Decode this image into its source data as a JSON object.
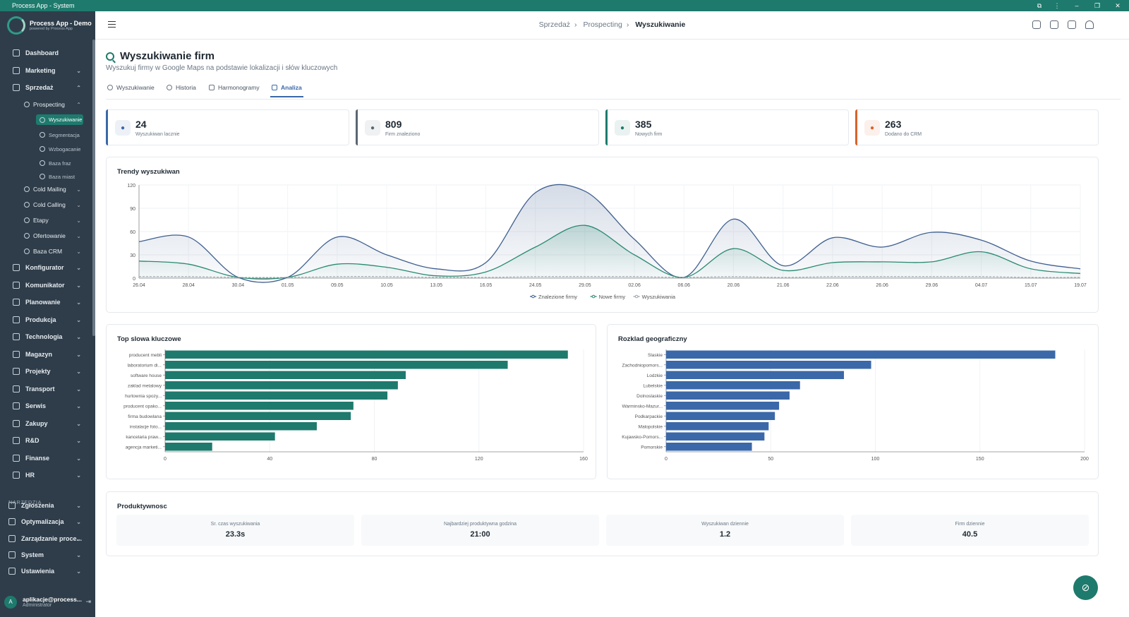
{
  "window": {
    "title": "Process App - System"
  },
  "brand": {
    "name": "Process App - Demo",
    "tagline": "powered by Process App"
  },
  "sidebar": {
    "items": [
      {
        "label": "Dashboard",
        "icon": "dashboard-icon",
        "expanded": null
      },
      {
        "label": "Marketing",
        "icon": "megaphone-icon",
        "expanded": false
      },
      {
        "label": "Sprzedaż",
        "icon": "trend-icon",
        "expanded": true
      },
      {
        "label": "Konfigurator",
        "icon": "sliders-icon",
        "expanded": false
      },
      {
        "label": "Komunikator",
        "icon": "chat-icon",
        "expanded": false
      },
      {
        "label": "Planowanie",
        "icon": "calendar-icon",
        "expanded": false
      },
      {
        "label": "Produkcja",
        "icon": "factory-icon",
        "expanded": false
      },
      {
        "label": "Technologia",
        "icon": "gear-icon",
        "expanded": false
      },
      {
        "label": "Magazyn",
        "icon": "warehouse-icon",
        "expanded": false
      },
      {
        "label": "Projekty",
        "icon": "folder-icon",
        "expanded": false
      },
      {
        "label": "Transport",
        "icon": "truck-icon",
        "expanded": false
      },
      {
        "label": "Serwis",
        "icon": "wrench-icon",
        "expanded": false
      },
      {
        "label": "Zakupy",
        "icon": "box-icon",
        "expanded": false
      },
      {
        "label": "R&D",
        "icon": "bulb-icon",
        "expanded": false
      },
      {
        "label": "Finanse",
        "icon": "wallet-icon",
        "expanded": false
      },
      {
        "label": "HR",
        "icon": "people-icon",
        "expanded": false
      }
    ],
    "sales_children": [
      {
        "label": "Prospecting",
        "expanded": true
      },
      {
        "label": "Cold Mailing",
        "expanded": false
      },
      {
        "label": "Cold Calling",
        "expanded": false
      },
      {
        "label": "Etapy",
        "expanded": false
      },
      {
        "label": "Ofertowanie",
        "expanded": false
      },
      {
        "label": "Baza CRM",
        "expanded": false
      }
    ],
    "prospecting_children": [
      {
        "label": "Wyszukiwanie",
        "active": true
      },
      {
        "label": "Segmentacja",
        "active": false
      },
      {
        "label": "Wzbogacanie",
        "active": false
      },
      {
        "label": "Baza fraz",
        "active": false
      },
      {
        "label": "Baza miast",
        "active": false
      }
    ],
    "tools_section": "NARZĘDZIA",
    "tools": [
      {
        "label": "Zgłoszenia",
        "icon": "ticket-icon"
      },
      {
        "label": "Optymalizacja",
        "icon": "bolt-icon"
      },
      {
        "label": "Zarządzanie proce...",
        "icon": "flow-icon"
      },
      {
        "label": "System",
        "icon": "cog-icon"
      },
      {
        "label": "Ustawienia",
        "icon": "settings-icon"
      }
    ],
    "user": {
      "initial": "A",
      "email": "aplikacje@process...",
      "role": "Administrator"
    }
  },
  "breadcrumb": [
    "Sprzedaż",
    "Prospecting",
    "Wyszukiwanie"
  ],
  "page": {
    "title": "Wyszukiwanie firm",
    "subtitle": "Wyszukuj firmy w Google Maps na podstawie lokalizacji i słów kluczowych",
    "tabs": [
      {
        "label": "Wyszukiwanie",
        "active": false
      },
      {
        "label": "Historia",
        "active": false
      },
      {
        "label": "Harmonogramy",
        "active": false
      },
      {
        "label": "Analiza",
        "active": true
      }
    ]
  },
  "stats": [
    {
      "value": "24",
      "label": "Wyszukiwan lacznie",
      "color": "#3b68a8",
      "icon": "search-icon"
    },
    {
      "value": "809",
      "label": "Firm znaleziono",
      "color": "#5a6672",
      "icon": "building-icon"
    },
    {
      "value": "385",
      "label": "Nowych firm",
      "color": "#1e7a6d",
      "icon": "trending-up-icon"
    },
    {
      "value": "263",
      "label": "Dodano do CRM",
      "color": "#d9622b",
      "icon": "check-circle-icon"
    }
  ],
  "trend_card": {
    "title": "Trendy wyszukiwan"
  },
  "keywords_card": {
    "title": "Top slowa kluczowe"
  },
  "geo_card": {
    "title": "Rozklad geograficzny"
  },
  "productivity": {
    "title": "Produktywnosc",
    "items": [
      {
        "label": "Sr. czas wyszukiwania",
        "value": "23.3s"
      },
      {
        "label": "Najbardziej produktywna godzina",
        "value": "21:00"
      },
      {
        "label": "Wyszukiwan dziennie",
        "value": "1.2"
      },
      {
        "label": "Firm dziennie",
        "value": "40.5"
      }
    ]
  },
  "chart_data": [
    {
      "type": "area",
      "title": "Trendy wyszukiwan",
      "x": [
        "26.04",
        "28.04",
        "30.04",
        "01.05",
        "09.05",
        "10.05",
        "13.05",
        "16.05",
        "24.05",
        "29.05",
        "02.06",
        "06.06",
        "20.06",
        "21.06",
        "22.06",
        "26.06",
        "29.06",
        "04.07",
        "15.07",
        "19.07"
      ],
      "ylim": [
        0,
        120
      ],
      "yticks": [
        0,
        30,
        60,
        90,
        120
      ],
      "series": [
        {
          "name": "Znalezione firmy",
          "color": "#3f5f8f",
          "values": [
            47,
            53,
            1,
            1,
            53,
            30,
            12,
            20,
            110,
            112,
            50,
            1,
            76,
            16,
            52,
            40,
            59,
            49,
            22,
            12
          ]
        },
        {
          "name": "Nowe firmy",
          "color": "#2a8a72",
          "values": [
            22,
            18,
            1,
            1,
            18,
            14,
            3,
            8,
            40,
            68,
            30,
            1,
            38,
            10,
            20,
            21,
            21,
            34,
            12,
            6
          ]
        },
        {
          "name": "Wyszukiwania",
          "color": "#9aa3ad",
          "values": [
            2,
            2,
            1,
            1,
            2,
            2,
            1,
            1,
            2,
            2,
            2,
            1,
            2,
            1,
            2,
            2,
            2,
            2,
            1,
            1
          ]
        }
      ]
    },
    {
      "type": "bar",
      "title": "Top slowa kluczowe",
      "orientation": "horizontal",
      "color": "#1e7a6d",
      "categories": [
        "producent mebli",
        "laboratorium di...",
        "software house",
        "zaklad metalowy",
        "hurtownia spozy...",
        "producent opako...",
        "firma budowlana",
        "instalacje foto...",
        "kancelaria praw...",
        "agencja marketi..."
      ],
      "values": [
        154,
        131,
        92,
        89,
        85,
        72,
        71,
        58,
        42,
        18
      ],
      "xlim": [
        0,
        160
      ],
      "xticks": [
        0,
        40,
        80,
        120,
        160
      ]
    },
    {
      "type": "bar",
      "title": "Rozklad geograficzny",
      "orientation": "horizontal",
      "color": "#3b68a8",
      "categories": [
        "Slaskie",
        "Zachodniopomors...",
        "Lodzkie",
        "Lubelskie",
        "Dolnoslaskie",
        "Warminsko-Mazur...",
        "Podkarpackie",
        "Malopolskie",
        "Kujawsko-Pomors...",
        "Pomorskie"
      ],
      "values": [
        186,
        98,
        85,
        64,
        59,
        54,
        52,
        49,
        47,
        41
      ],
      "xlim": [
        0,
        200
      ],
      "xticks": [
        0,
        50,
        100,
        150,
        200
      ]
    }
  ]
}
